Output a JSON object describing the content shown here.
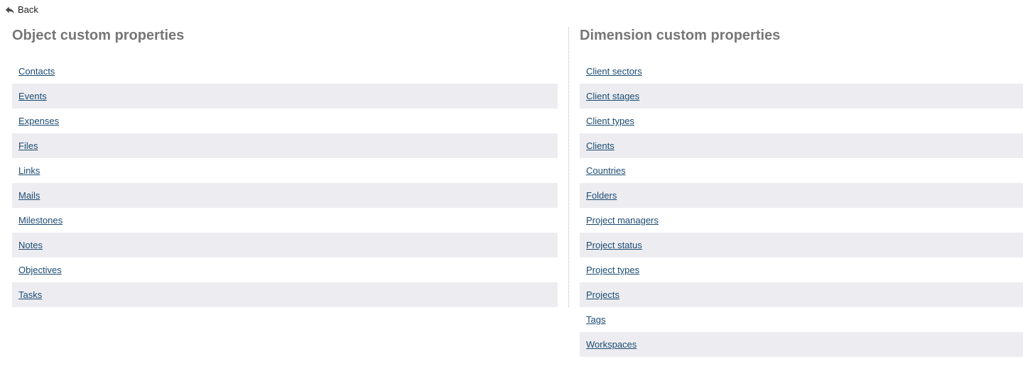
{
  "back": {
    "label": "Back"
  },
  "colors": {
    "link": "#1a4a72",
    "row_alt": "#ededf1",
    "heading": "#767676",
    "divider": "#b8b8b8",
    "back_text": "#1c1c1c",
    "back_icon": "#4a4a4a"
  },
  "left_panel": {
    "title": "Object custom properties",
    "items": [
      "Contacts",
      "Events",
      "Expenses",
      "Files",
      "Links",
      "Mails",
      "Milestones",
      "Notes",
      "Objectives",
      "Tasks"
    ]
  },
  "right_panel": {
    "title": "Dimension custom properties",
    "items": [
      "Client sectors",
      "Client stages",
      "Client types",
      "Clients",
      "Countries",
      "Folders",
      "Project managers",
      "Project status",
      "Project types",
      "Projects",
      "Tags",
      "Workspaces"
    ]
  }
}
